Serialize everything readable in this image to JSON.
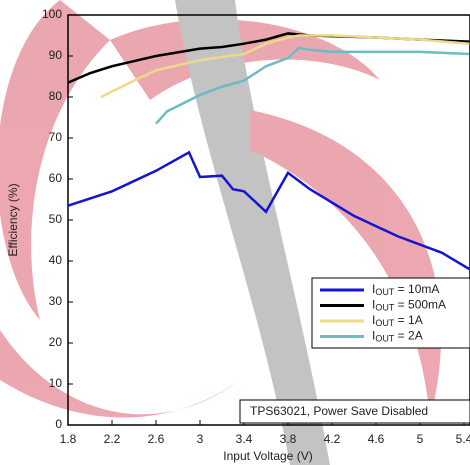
{
  "chart_data": {
    "type": "line",
    "xlabel": "Input Voltage (V)",
    "ylabel": "Efficiency (%)",
    "annotation": "TPS63021, Power Save Disabled",
    "xlim": [
      1.8,
      5.45
    ],
    "ylim": [
      0,
      100
    ],
    "xticks": [
      1.8,
      2.2,
      2.6,
      3,
      3.4,
      3.8,
      4.2,
      4.6,
      5,
      5.4
    ],
    "yticks": [
      0,
      10,
      20,
      30,
      40,
      50,
      60,
      70,
      80,
      90,
      100
    ],
    "series": [
      {
        "name": "IOUT = 10mA",
        "color": "#1414d2",
        "x": [
          1.8,
          2.2,
          2.6,
          2.9,
          3.0,
          3.2,
          3.3,
          3.4,
          3.6,
          3.8,
          4.0,
          4.4,
          4.8,
          5.2,
          5.45
        ],
        "values": [
          53.5,
          57,
          62,
          66.5,
          60.5,
          60.8,
          57.5,
          57,
          52,
          61.5,
          57.5,
          51,
          46,
          42,
          38
        ]
      },
      {
        "name": "IOUT = 500mA",
        "color": "#000000",
        "x": [
          1.8,
          2.0,
          2.2,
          2.6,
          3.0,
          3.2,
          3.4,
          3.6,
          3.8,
          4.0,
          4.6,
          5.0,
          5.45
        ],
        "values": [
          83.5,
          85.8,
          87.5,
          90,
          91.8,
          92.2,
          93,
          94,
          95.5,
          95,
          94.5,
          94,
          93.5
        ]
      },
      {
        "name": "IOUT = 1A",
        "color": "#ecd98a",
        "x": [
          2.1,
          2.4,
          2.6,
          3.0,
          3.4,
          3.6,
          3.8,
          3.9,
          4.2,
          4.6,
          5.0,
          5.45
        ],
        "values": [
          80,
          84,
          86.5,
          89,
          90.5,
          93,
          94.5,
          95,
          95,
          94.5,
          94,
          93
        ]
      },
      {
        "name": "IOUT = 2A",
        "color": "#6cbcc4",
        "x": [
          2.6,
          2.7,
          3.0,
          3.2,
          3.4,
          3.6,
          3.8,
          3.9,
          4.0,
          4.2,
          5.0,
          5.45
        ],
        "values": [
          73.5,
          76.5,
          80.5,
          82.5,
          84,
          87.5,
          89.5,
          92,
          91.5,
          91,
          91,
          90.5
        ]
      }
    ]
  }
}
